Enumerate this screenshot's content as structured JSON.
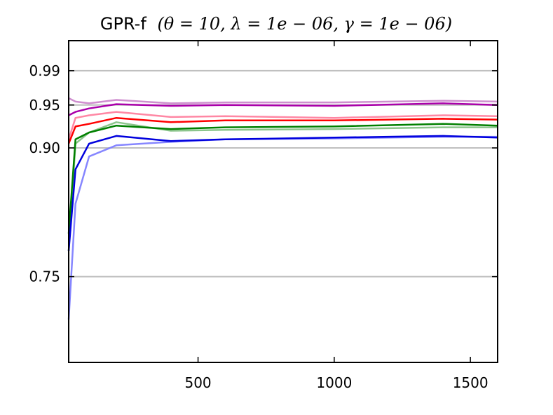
{
  "chart_data": {
    "type": "line",
    "title": "GPR-f",
    "title_params": "(θ = 10, λ = 1e − 06, γ = 1e − 06)",
    "xlabel": "",
    "ylabel": "",
    "xlim": [
      25,
      1600
    ],
    "ylim": [
      0.65,
      1.025
    ],
    "x_ticks": [
      500,
      1000,
      1500
    ],
    "x_tick_labels": [
      "500",
      "1000",
      "1500"
    ],
    "y_ticks": [
      0.75,
      0.9,
      0.95,
      0.99
    ],
    "y_tick_labels": [
      "0.75",
      "0.90",
      "0.95",
      "0.99"
    ],
    "grid": "horizontal",
    "legend": "none",
    "x": [
      25,
      50,
      100,
      200,
      400,
      600,
      1000,
      1400,
      1600
    ],
    "series": [
      {
        "color": "#c77ac7",
        "alpha": 0.85,
        "width": 2.5,
        "values": [
          0.958,
          0.954,
          0.952,
          0.956,
          0.952,
          0.953,
          0.953,
          0.955,
          0.954
        ]
      },
      {
        "color": "#aa00aa",
        "alpha": 1.0,
        "width": 2.5,
        "values": [
          0.938,
          0.942,
          0.946,
          0.951,
          0.949,
          0.95,
          0.949,
          0.952,
          0.95
        ]
      },
      {
        "color": "#ff7a9a",
        "alpha": 0.9,
        "width": 2.5,
        "values": [
          0.91,
          0.935,
          0.938,
          0.942,
          0.936,
          0.937,
          0.935,
          0.938,
          0.937
        ]
      },
      {
        "color": "#ff0000",
        "alpha": 1.0,
        "width": 2.5,
        "values": [
          0.905,
          0.925,
          0.928,
          0.935,
          0.93,
          0.932,
          0.932,
          0.934,
          0.933
        ]
      },
      {
        "color": "#7fbf7f",
        "alpha": 0.9,
        "width": 2.5,
        "values": [
          0.78,
          0.905,
          0.918,
          0.93,
          0.92,
          0.921,
          0.922,
          0.924,
          0.924
        ]
      },
      {
        "color": "#008000",
        "alpha": 1.0,
        "width": 2.5,
        "values": [
          0.8,
          0.91,
          0.918,
          0.926,
          0.922,
          0.924,
          0.925,
          0.928,
          0.926
        ]
      },
      {
        "color": "#7f7fff",
        "alpha": 0.95,
        "width": 2.5,
        "values": [
          0.7,
          0.835,
          0.89,
          0.903,
          0.907,
          0.91,
          0.911,
          0.913,
          0.913
        ]
      },
      {
        "color": "#0000dd",
        "alpha": 1.0,
        "width": 2.5,
        "values": [
          0.78,
          0.875,
          0.905,
          0.914,
          0.908,
          0.91,
          0.912,
          0.914,
          0.912
        ]
      }
    ]
  }
}
